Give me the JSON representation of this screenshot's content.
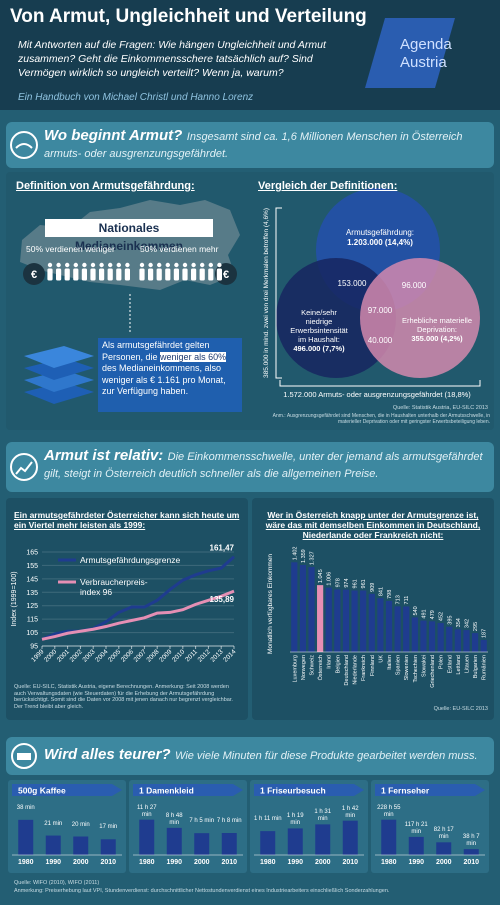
{
  "header": {
    "title": "Von Armut, Ungleichheit und Verteilung",
    "subtitle": "Mit Antworten auf die Fragen: Wie hängen Ungleichheit und Armut zusammen? Geht die Einkommensschere tatsächlich auf? Sind Vermögen wirklich so ungleich verteilt? Wenn ja, warum?",
    "authors": "Ein Handbuch von Michael Christl und Hanno Lorenz",
    "logo": [
      "Agenda",
      "Austria"
    ]
  },
  "sections": [
    {
      "title": "Wo beginnt Armut?",
      "text": "Insgesamt sind ca. 1,6 Millionen Menschen in Österreich armuts- oder ausgrenzungsgefährdet."
    },
    {
      "title": "Armut ist relativ:",
      "text": "Die Einkommensschwelle, unter der jemand als armutsgefährdet gilt, steigt in Österreich deutlich schneller als die allgemeinen Preise."
    },
    {
      "title": "Wird alles teurer?",
      "text": "Wie viele Minuten für diese Produkte gearbeitet werden muss."
    }
  ],
  "definition": {
    "heading": "Definition von Armutsgefährdung:",
    "median": "Nationales Medianeinkommen",
    "below": "50% verdienen weniger",
    "above": "50% verdienen mehr",
    "bag_symbol": "€",
    "text": [
      "Als armutsgefährdet gelten Personen, die ",
      "weniger als 60%",
      " des Medianeinkommens, also weniger als € 1.161 pro Monat, zur Verfügung haben."
    ]
  },
  "venn": {
    "heading": "Vergleich der Definitionen:",
    "circles": [
      {
        "label": "Armutsgefährdung:",
        "value": "1.203.000 (14,4%)"
      },
      {
        "label": "Keine/sehr niedrige Erwerbsintensität im Haushalt:",
        "value": "496.000 (7,7%)"
      },
      {
        "label": "Erhebliche materielle Deprivation:",
        "value": "355.000 (4,2%)"
      }
    ],
    "overlaps": [
      "153.000",
      "96.000",
      "97.000",
      "40.000"
    ],
    "side_label": "385.000 in mind. zwei von drei Merkmalen betroffen (4,6%)",
    "total": "1.572.000 Armuts- oder ausgrenzungsgefährdet (18,8%)",
    "source": "Quelle: Statistik Austria, EU-SILC 2013",
    "note": "Anm.: Ausgrenzungsgefährdet sind Menschen, die in Haushalten unterhalb der Armutsschwelle, in materieller Deprivation oder mit geringster Erwerbsbeteiligung leben."
  },
  "chart_data": [
    {
      "type": "line",
      "title": "Ein armutsgefährdeter Österreicher kann sich heute um ein Viertel mehr leisten als 1999:",
      "ylabel": "Index (1999=100)",
      "x": [
        1999,
        2000,
        2001,
        2002,
        2003,
        2004,
        2005,
        2006,
        2007,
        2008,
        2009,
        2010,
        2011,
        2012,
        2013,
        2014
      ],
      "xlim": [
        1999,
        2014
      ],
      "xticks": [
        1999,
        2000,
        2001,
        2002,
        2003,
        2004,
        2005,
        2006,
        2007,
        2008,
        2009,
        2010,
        2011,
        2012,
        2013,
        2014
      ],
      "ylim": [
        95,
        165
      ],
      "yticks": [
        95,
        105,
        115,
        125,
        135,
        145,
        155,
        165
      ],
      "grid": true,
      "series": [
        {
          "name": "Armutsgefährdungsgrenze",
          "color": "#1f3c8f",
          "end_label": "161,47",
          "values": [
            100,
            104,
            106,
            106,
            108,
            113,
            120,
            124,
            124,
            129,
            137,
            144,
            148,
            151,
            153,
            161.47
          ]
        },
        {
          "name": "Verbraucherpreis-index 96",
          "color": "#e58fb4",
          "end_label": "135,89",
          "values": [
            100,
            102,
            104.5,
            106,
            107.5,
            109.5,
            112,
            114,
            116,
            119.5,
            120,
            122,
            126,
            129,
            132,
            135.89
          ]
        }
      ],
      "source": "Quelle: EU-SILC, Statistik Austria, eigene Berechnungen. Anmerkung: Seit 2008 werden auch Verwaltungsdaten (wie Steuerdaten) für die Erhebung der Armutsgefährdung berücksichtigt. Somit sind die Daten vor 2008 mit jenen danach nur begrenzt vergleichbar. Der Trend bleibt aber gleich."
    },
    {
      "type": "bar",
      "title": "Wer in Österreich knapp unter der Armutsgrenze ist, wäre das mit demselben Einkommen in Deutschland, Niederlande oder Frankreich nicht:",
      "ylabel": "Monatlich verfügbares Einkommen",
      "categories": [
        "Luxemburg",
        "Norwegen",
        "Schweiz",
        "Österreich",
        "Irland",
        "Belgien",
        "Deutschland",
        "Niederlande",
        "Frankreich",
        "Finnland",
        "UK",
        "Italien",
        "Spanien",
        "Slowenien",
        "Tschechien",
        "Slowakei",
        "Griechenland",
        "Polen",
        "Estland",
        "Lettland",
        "Litauen",
        "Bulgarien",
        "Rumänien"
      ],
      "values": [
        1402,
        1359,
        1327,
        1045,
        1006,
        978,
        974,
        961,
        961,
        909,
        841,
        798,
        713,
        711,
        540,
        491,
        479,
        452,
        395,
        354,
        342,
        295,
        187
      ],
      "value_labels": [
        "1.402",
        "1.359",
        "1.327",
        "1.045",
        "1.006",
        "978",
        "974",
        "961",
        "961",
        "909",
        "841",
        "798",
        "713",
        "711",
        "540",
        "491",
        "479",
        "452",
        "395",
        "354",
        "342",
        "295",
        "187"
      ],
      "colors": [
        "#1f3c8f",
        "#1f3c8f",
        "#1f3c8f",
        "#e58fb4",
        "#1f3c8f",
        "#1f3c8f",
        "#1f3c8f",
        "#1f3c8f",
        "#1f3c8f",
        "#1f3c8f",
        "#1f3c8f",
        "#1f3c8f",
        "#1f3c8f",
        "#1f3c8f",
        "#1f3c8f",
        "#1f3c8f",
        "#1f3c8f",
        "#1f3c8f",
        "#1f3c8f",
        "#1f3c8f",
        "#1f3c8f",
        "#1f3c8f",
        "#1f3c8f"
      ],
      "ylim": [
        0,
        1500
      ],
      "source": "Quelle: EU-SILC 2013"
    },
    {
      "type": "bar",
      "title": "500g Kaffee",
      "categories": [
        "1980",
        "1990",
        "2000",
        "2010"
      ],
      "values": [
        38,
        21,
        20,
        17
      ],
      "value_labels": [
        "38 min",
        "21 min",
        "20 min",
        "17 min"
      ],
      "color": "#1f3c8f",
      "ylim": [
        0,
        40
      ]
    },
    {
      "type": "bar",
      "title": "1 Damenkleid",
      "categories": [
        "1980",
        "1990",
        "2000",
        "2010"
      ],
      "values": [
        687,
        528,
        425,
        428
      ],
      "value_labels": [
        "11 h 27 min",
        "8 h 48 min",
        "7 h 5 min",
        "7 h 8 min"
      ],
      "color": "#1f3c8f",
      "ylim": [
        0,
        720
      ]
    },
    {
      "type": "bar",
      "title": "1 Friseurbesuch",
      "categories": [
        "1980",
        "1990",
        "2000",
        "2010"
      ],
      "values": [
        71,
        79,
        91,
        102
      ],
      "value_labels": [
        "1 h 11 min",
        "1 h 19 min",
        "1 h 31 min",
        "1 h 42 min"
      ],
      "color": "#1f3c8f",
      "ylim": [
        0,
        110
      ]
    },
    {
      "type": "bar",
      "title": "1 Fernseher",
      "categories": [
        "1980",
        "1990",
        "2000",
        "2010"
      ],
      "values": [
        13735,
        7041,
        4937,
        2287
      ],
      "value_labels": [
        "228 h 55 min",
        "117 h 21 min",
        "82 h 17 min",
        "38 h 7 min"
      ],
      "color": "#1f3c8f",
      "ylim": [
        0,
        14400
      ]
    }
  ],
  "footer": {
    "source": "Quelle: WIFO (2010), WIFO (2011)",
    "note": "Anmerkung: Preiserhebung laut VPI, Stundenverdienst: durchschnittlicher Nettostundenverdienst eines Industriearbeiters einschließlich Sonderzahlungen."
  }
}
